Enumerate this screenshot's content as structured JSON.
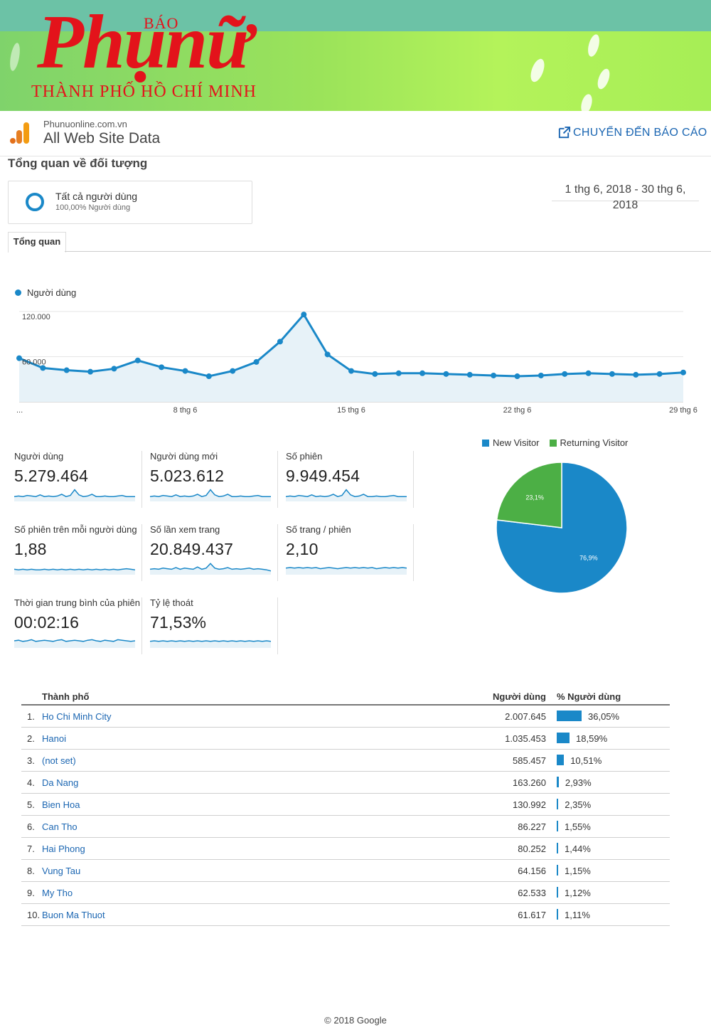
{
  "banner": {
    "brand_small": "BÁO",
    "brand_main": "Phụnữ",
    "brand_sub": "THÀNH PHỐ HỒ CHÍ MINH"
  },
  "header": {
    "domain": "Phunuonline.com.vn",
    "view_name": "All Web Site Data",
    "goto_report": "CHUYỂN ĐẾN BÁO CÁO",
    "page_title": "Tổng quan về đối tượng"
  },
  "segment": {
    "name": "Tất cả người dùng",
    "pct": "100,00% Người dùng"
  },
  "date_range": "1 thg 6, 2018 - 30 thg 6, 2018",
  "tabs": [
    "Tổng quan"
  ],
  "colors": {
    "primary": "#1a88c8",
    "returning": "#4caf45",
    "link": "#1b66b2"
  },
  "chart_data": [
    {
      "type": "area",
      "series": [
        {
          "name": "Người dùng",
          "values": [
            58000,
            45000,
            42000,
            40000,
            44000,
            55000,
            46000,
            41000,
            34000,
            41000,
            53000,
            80000,
            116000,
            63000,
            41000,
            37000,
            38000,
            38000,
            37000,
            36000,
            35000,
            34000,
            35000,
            37000,
            38000,
            37000,
            36000,
            37000,
            39000
          ]
        }
      ],
      "y_ticks": [
        "120.000",
        "60.000"
      ],
      "x_ticks": [
        "...",
        "8 thg 6",
        "15 thg 6",
        "22 thg 6",
        "29 thg 6"
      ],
      "ylim": [
        0,
        125000
      ],
      "grid": true
    },
    {
      "type": "pie",
      "categories": [
        "New Visitor",
        "Returning Visitor"
      ],
      "values": [
        76.9,
        23.1
      ],
      "labels": [
        "76,9%",
        "23,1%"
      ],
      "colors": [
        "#1a88c8",
        "#4caf45"
      ],
      "legend": "top"
    }
  ],
  "metrics": [
    {
      "label": "Người dùng",
      "value": "5.279.464"
    },
    {
      "label": "Người dùng mới",
      "value": "5.023.612"
    },
    {
      "label": "Số phiên",
      "value": "9.949.454"
    },
    {
      "label": "Số phiên trên mỗi người dùng",
      "value": "1,88"
    },
    {
      "label": "Số lần xem trang",
      "value": "20.849.437"
    },
    {
      "label": "Số trang / phiên",
      "value": "2,10"
    },
    {
      "label": "Thời gian trung bình của phiên",
      "value": "00:02:16"
    },
    {
      "label": "Tỷ lệ thoát",
      "value": "71,53%"
    }
  ],
  "table": {
    "headers": {
      "city": "Thành phố",
      "users": "Người dùng",
      "pct": "% Người dùng"
    },
    "rows": [
      {
        "idx": "1.",
        "city": "Ho Chi Minh City",
        "users": "2.007.645",
        "pct": "36,05%",
        "share": 36.05
      },
      {
        "idx": "2.",
        "city": "Hanoi",
        "users": "1.035.453",
        "pct": "18,59%",
        "share": 18.59
      },
      {
        "idx": "3.",
        "city": "(not set)",
        "users": "585.457",
        "pct": "10,51%",
        "share": 10.51
      },
      {
        "idx": "4.",
        "city": "Da Nang",
        "users": "163.260",
        "pct": "2,93%",
        "share": 2.93
      },
      {
        "idx": "5.",
        "city": "Bien Hoa",
        "users": "130.992",
        "pct": "2,35%",
        "share": 2.35
      },
      {
        "idx": "6.",
        "city": "Can Tho",
        "users": "86.227",
        "pct": "1,55%",
        "share": 1.55
      },
      {
        "idx": "7.",
        "city": "Hai Phong",
        "users": "80.252",
        "pct": "1,44%",
        "share": 1.44
      },
      {
        "idx": "8.",
        "city": "Vung Tau",
        "users": "64.156",
        "pct": "1,15%",
        "share": 1.15
      },
      {
        "idx": "9.",
        "city": "My Tho",
        "users": "62.533",
        "pct": "1,12%",
        "share": 1.12
      },
      {
        "idx": "10.",
        "city": "Buon Ma Thuot",
        "users": "61.617",
        "pct": "1,11%",
        "share": 1.11
      }
    ]
  },
  "footer": "© 2018 Google"
}
